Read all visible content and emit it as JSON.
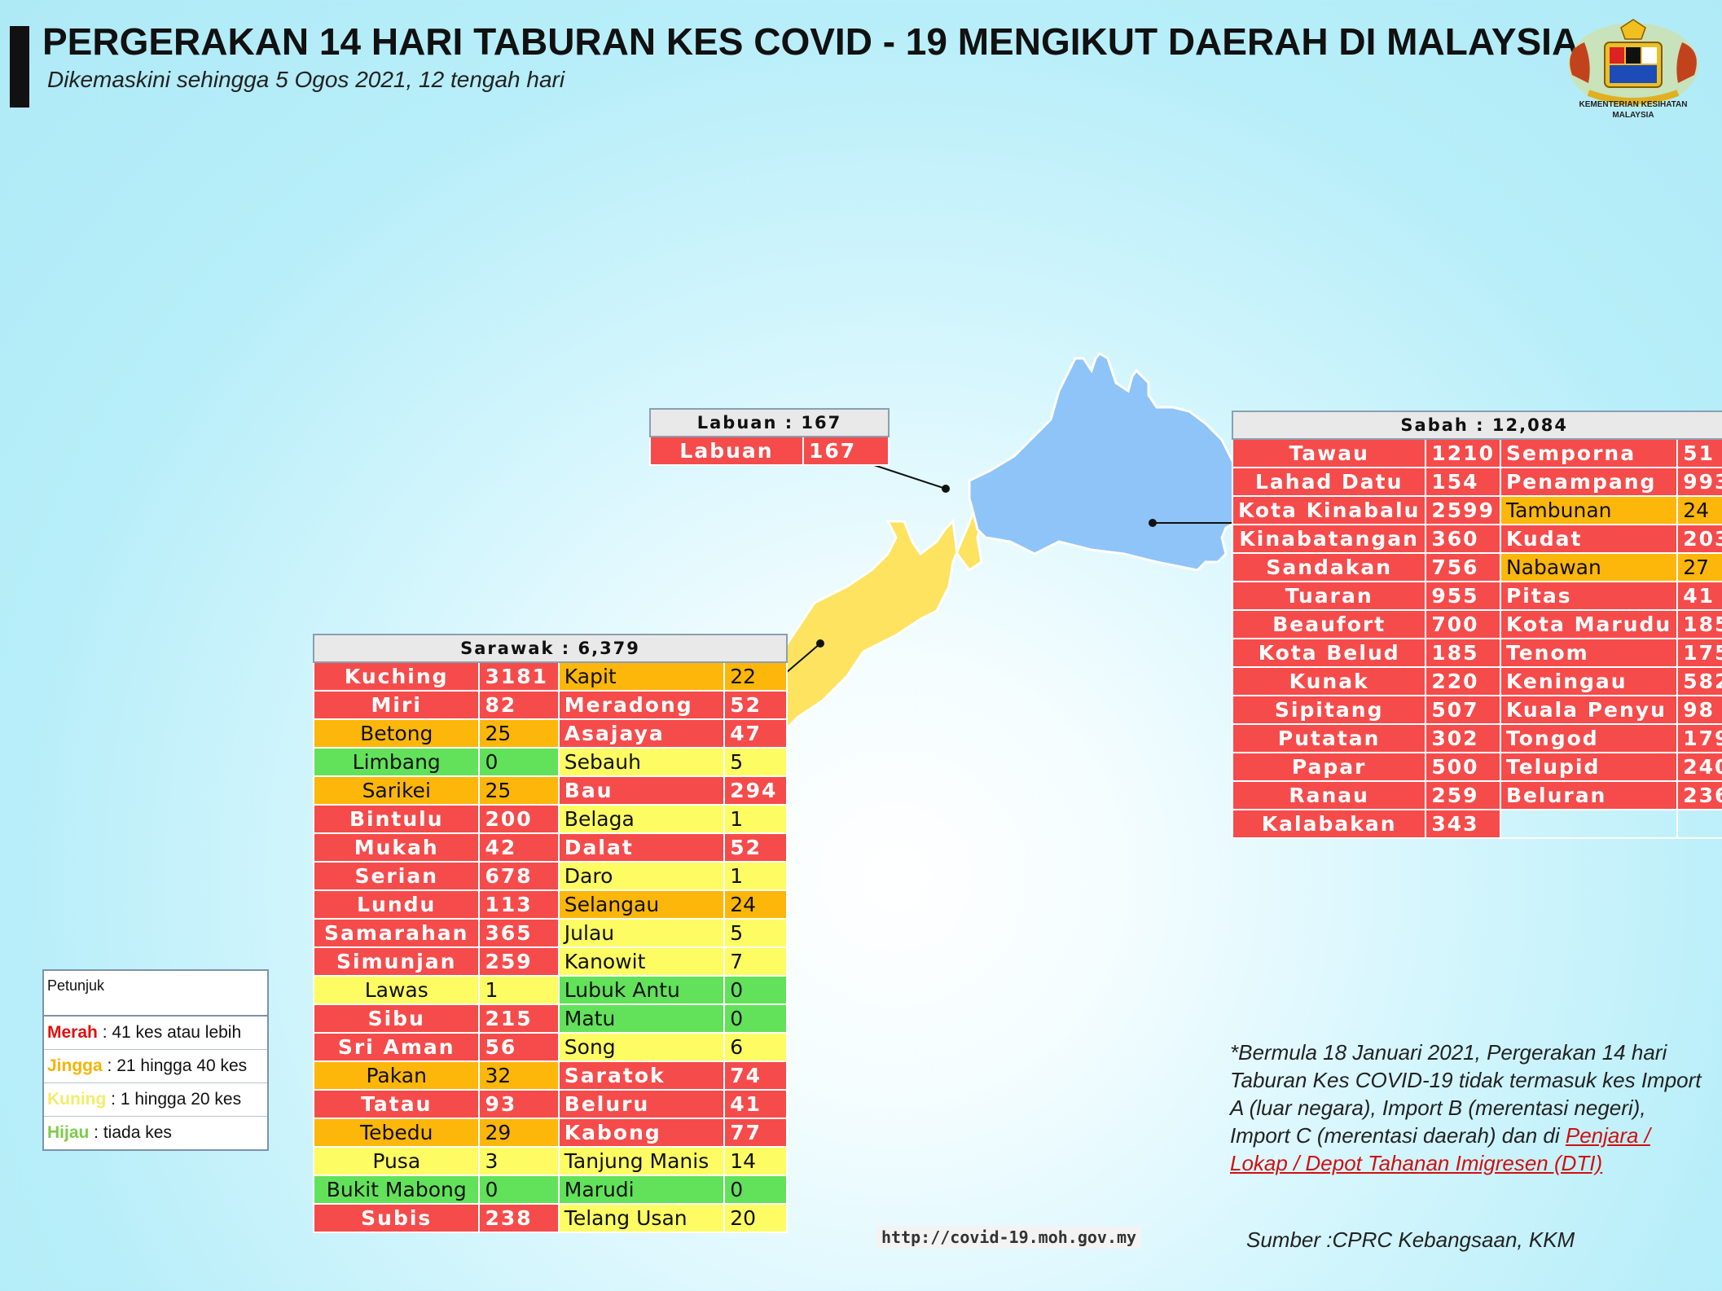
{
  "header": {
    "title": "PERGERAKAN 14 HARI TABURAN KES COVID - 19 MENGIKUT DAERAH DI MALAYSIA",
    "subtitle": "Dikemaskini sehingga 5 Ogos 2021, 12 tengah hari",
    "logo_caption_line1": "KEMENTERIAN KESIHATAN",
    "logo_caption_line2": "MALAYSIA"
  },
  "colors": {
    "merah": "#f64b4b",
    "jingga": "#fdb60a",
    "kuning": "#fdfc63",
    "hijau": "#62e25a",
    "sabah_map": "#8ec4f8",
    "sarawak_map": "#fde35f"
  },
  "labuan": {
    "header": "Labuan : 167",
    "rows": [
      {
        "name": "Labuan",
        "value": "167",
        "status": "merah"
      }
    ]
  },
  "sabah": {
    "header": "Sabah : 12,084",
    "rows": [
      [
        {
          "name": "Tawau",
          "value": "1210",
          "status": "merah"
        },
        {
          "name": "Semporna",
          "value": "51",
          "status": "merah"
        }
      ],
      [
        {
          "name": "Lahad Datu",
          "value": "154",
          "status": "merah"
        },
        {
          "name": "Penampang",
          "value": "993",
          "status": "merah"
        }
      ],
      [
        {
          "name": "Kota Kinabalu",
          "value": "2599",
          "status": "merah"
        },
        {
          "name": "Tambunan",
          "value": "24",
          "status": "jingga"
        }
      ],
      [
        {
          "name": "Kinabatangan",
          "value": "360",
          "status": "merah"
        },
        {
          "name": "Kudat",
          "value": "203",
          "status": "merah"
        }
      ],
      [
        {
          "name": "Sandakan",
          "value": "756",
          "status": "merah"
        },
        {
          "name": "Nabawan",
          "value": "27",
          "status": "jingga"
        }
      ],
      [
        {
          "name": "Tuaran",
          "value": "955",
          "status": "merah"
        },
        {
          "name": "Pitas",
          "value": "41",
          "status": "merah"
        }
      ],
      [
        {
          "name": "Beaufort",
          "value": "700",
          "status": "merah"
        },
        {
          "name": "Kota Marudu",
          "value": "185",
          "status": "merah"
        }
      ],
      [
        {
          "name": "Kota Belud",
          "value": "185",
          "status": "merah"
        },
        {
          "name": "Tenom",
          "value": "175",
          "status": "merah"
        }
      ],
      [
        {
          "name": "Kunak",
          "value": "220",
          "status": "merah"
        },
        {
          "name": "Keningau",
          "value": "582",
          "status": "merah"
        }
      ],
      [
        {
          "name": "Sipitang",
          "value": "507",
          "status": "merah"
        },
        {
          "name": "Kuala Penyu",
          "value": "98",
          "status": "merah"
        }
      ],
      [
        {
          "name": "Putatan",
          "value": "302",
          "status": "merah"
        },
        {
          "name": "Tongod",
          "value": "179",
          "status": "merah"
        }
      ],
      [
        {
          "name": "Papar",
          "value": "500",
          "status": "merah"
        },
        {
          "name": "Telupid",
          "value": "240",
          "status": "merah"
        }
      ],
      [
        {
          "name": "Ranau",
          "value": "259",
          "status": "merah"
        },
        {
          "name": "Beluran",
          "value": "236",
          "status": "merah"
        }
      ],
      [
        {
          "name": "Kalabakan",
          "value": "343",
          "status": "merah"
        },
        null
      ]
    ]
  },
  "sarawak": {
    "header": "Sarawak : 6,379",
    "rows": [
      [
        {
          "name": "Kuching",
          "value": "3181",
          "status": "merah"
        },
        {
          "name": "Kapit",
          "value": "22",
          "status": "jingga"
        }
      ],
      [
        {
          "name": "Miri",
          "value": "82",
          "status": "merah"
        },
        {
          "name": "Meradong",
          "value": "52",
          "status": "merah"
        }
      ],
      [
        {
          "name": "Betong",
          "value": "25",
          "status": "jingga"
        },
        {
          "name": "Asajaya",
          "value": "47",
          "status": "merah"
        }
      ],
      [
        {
          "name": "Limbang",
          "value": "0",
          "status": "hijau"
        },
        {
          "name": "Sebauh",
          "value": "5",
          "status": "kuning"
        }
      ],
      [
        {
          "name": "Sarikei",
          "value": "25",
          "status": "jingga"
        },
        {
          "name": "Bau",
          "value": "294",
          "status": "merah"
        }
      ],
      [
        {
          "name": "Bintulu",
          "value": "200",
          "status": "merah"
        },
        {
          "name": "Belaga",
          "value": "1",
          "status": "kuning"
        }
      ],
      [
        {
          "name": "Mukah",
          "value": "42",
          "status": "merah"
        },
        {
          "name": "Dalat",
          "value": "52",
          "status": "merah"
        }
      ],
      [
        {
          "name": "Serian",
          "value": "678",
          "status": "merah"
        },
        {
          "name": "Daro",
          "value": "1",
          "status": "kuning"
        }
      ],
      [
        {
          "name": "Lundu",
          "value": "113",
          "status": "merah"
        },
        {
          "name": "Selangau",
          "value": "24",
          "status": "jingga"
        }
      ],
      [
        {
          "name": "Samarahan",
          "value": "365",
          "status": "merah"
        },
        {
          "name": "Julau",
          "value": "5",
          "status": "kuning"
        }
      ],
      [
        {
          "name": "Simunjan",
          "value": "259",
          "status": "merah"
        },
        {
          "name": "Kanowit",
          "value": "7",
          "status": "kuning"
        }
      ],
      [
        {
          "name": "Lawas",
          "value": "1",
          "status": "kuning"
        },
        {
          "name": "Lubuk Antu",
          "value": "0",
          "status": "hijau"
        }
      ],
      [
        {
          "name": "Sibu",
          "value": "215",
          "status": "merah"
        },
        {
          "name": "Matu",
          "value": "0",
          "status": "hijau"
        }
      ],
      [
        {
          "name": "Sri Aman",
          "value": "56",
          "status": "merah"
        },
        {
          "name": "Song",
          "value": "6",
          "status": "kuning"
        }
      ],
      [
        {
          "name": "Pakan",
          "value": "32",
          "status": "jingga"
        },
        {
          "name": "Saratok",
          "value": "74",
          "status": "merah"
        }
      ],
      [
        {
          "name": "Tatau",
          "value": "93",
          "status": "merah"
        },
        {
          "name": "Beluru",
          "value": "41",
          "status": "merah"
        }
      ],
      [
        {
          "name": "Tebedu",
          "value": "29",
          "status": "jingga"
        },
        {
          "name": "Kabong",
          "value": "77",
          "status": "merah"
        }
      ],
      [
        {
          "name": "Pusa",
          "value": "3",
          "status": "kuning"
        },
        {
          "name": "Tanjung Manis",
          "value": "14",
          "status": "kuning"
        }
      ],
      [
        {
          "name": "Bukit Mabong",
          "value": "0",
          "status": "hijau"
        },
        {
          "name": "Marudi",
          "value": "0",
          "status": "hijau"
        }
      ],
      [
        {
          "name": "Subis",
          "value": "238",
          "status": "merah"
        },
        {
          "name": "Telang Usan",
          "value": "20",
          "status": "kuning"
        }
      ]
    ]
  },
  "legend": {
    "title": "Petunjuk",
    "items": [
      {
        "key": "Merah",
        "text": " : 41 kes atau lebih",
        "color": "#e01010"
      },
      {
        "key": "Jingga",
        "text": " : 21 hingga 40 kes",
        "color": "#f5b400"
      },
      {
        "key": "Kuning",
        "text": " : 1 hingga 20 kes",
        "color": "#f4ec6a"
      },
      {
        "key": "Hijau",
        "text": " : tiada kes",
        "color": "#7ccb4a"
      }
    ]
  },
  "note": {
    "text": "*Bermula 18 Januari 2021, Pergerakan 14 hari Taburan Kes COVID-19 tidak termasuk kes Import A (luar negara), Import B (merentasi negeri), Import C (merentasi daerah) dan di ",
    "link": "Penjara / Lokap / Depot Tahanan Imigresen (DTI)"
  },
  "url": "http://covid-19.moh.gov.my",
  "source": "Sumber :CPRC Kebangsaan,  KKM"
}
